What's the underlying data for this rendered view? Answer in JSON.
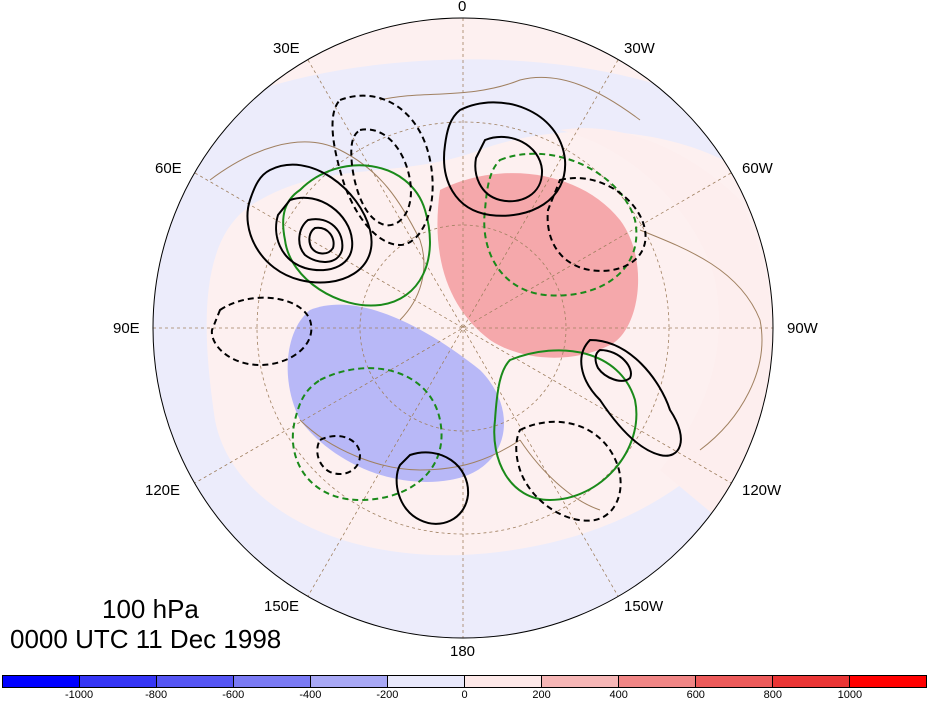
{
  "map": {
    "projection": "north polar stereographic",
    "longitude_labels": [
      "0",
      "30W",
      "60W",
      "90W",
      "120W",
      "150W",
      "180",
      "150E",
      "120E",
      "90E",
      "60E",
      "30E"
    ],
    "colors": {
      "positive_shading": "#f5a8ab",
      "negative_shading": "#b8b8f7",
      "contour_positive": "#000000",
      "contour_green": "#1a8a1a",
      "coastline": "#a08060"
    }
  },
  "title": {
    "level": "100 hPa",
    "time": "0000 UTC 11 Dec 1998"
  },
  "colorbar": {
    "colors": [
      "#0000ff",
      "#3535f5",
      "#5555f3",
      "#7a7af4",
      "#a8a8f5",
      "#e8e8fb",
      "#fde8e8",
      "#f6b6b6",
      "#f08585",
      "#ec5a5a",
      "#ea3535",
      "#ff0000"
    ],
    "tick_labels": [
      "-1000",
      "-800",
      "-600",
      "-400",
      "-200",
      "0",
      "200",
      "400",
      "600",
      "800",
      "1000"
    ]
  }
}
